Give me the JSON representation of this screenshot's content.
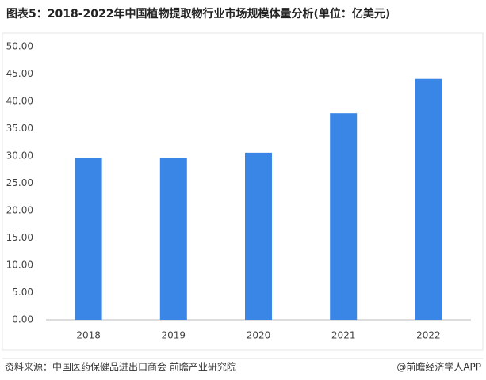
{
  "chart_data": {
    "type": "bar",
    "title": "图表5：2018-2022年中国植物提取物行业市场规模体量分析(单位：亿美元)",
    "categories": [
      "2018",
      "2019",
      "2020",
      "2021",
      "2022"
    ],
    "values": [
      29.6,
      29.6,
      30.6,
      37.8,
      44.1
    ],
    "color": "#3a86e6",
    "ylim": [
      0,
      50
    ],
    "yticks": [
      {
        "value": 0,
        "label": "0.00"
      },
      {
        "value": 5,
        "label": "5.00"
      },
      {
        "value": 10,
        "label": "10.00"
      },
      {
        "value": 15,
        "label": "15.00"
      },
      {
        "value": 20,
        "label": "20.00"
      },
      {
        "value": 25,
        "label": "25.00"
      },
      {
        "value": 30,
        "label": "30.00"
      },
      {
        "value": 35,
        "label": "35.00"
      },
      {
        "value": 40,
        "label": "40.00"
      },
      {
        "value": 45,
        "label": "45.00"
      },
      {
        "value": 50,
        "label": "50.00"
      }
    ],
    "grid": false,
    "source": "资料来源：中国医药保健品进出口商会 前瞻产业研究院",
    "credit": "@前瞻经济学人APP"
  }
}
